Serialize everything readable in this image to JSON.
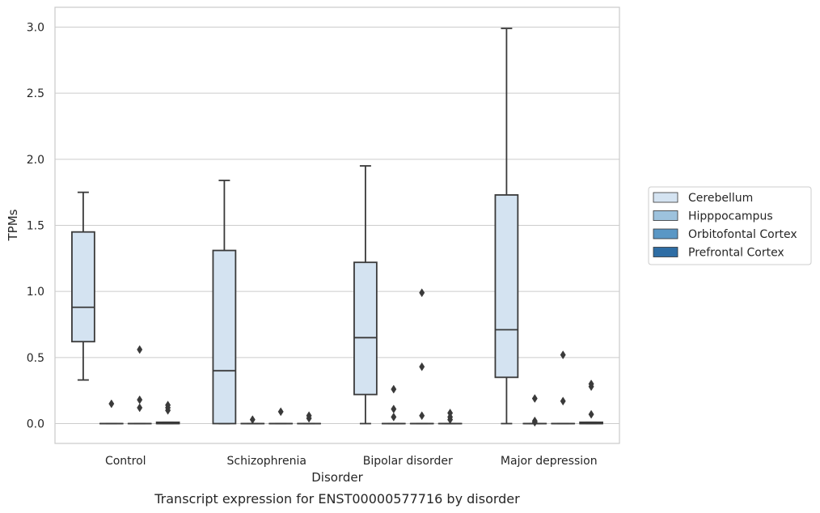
{
  "caption": "Transcript expression for ENST00000577716 by disorder",
  "chart_data": {
    "type": "box",
    "xlabel": "Disorder",
    "ylabel": "TPMs",
    "ylim": [
      -0.15,
      3.15
    ],
    "yticks": [
      0.0,
      0.5,
      1.0,
      1.5,
      2.0,
      2.5,
      3.0
    ],
    "ytick_labels": [
      "0.0",
      "0.5",
      "1.0",
      "1.5",
      "2.0",
      "2.5",
      "3.0"
    ],
    "grid": "horizontal",
    "legend_position": "right",
    "categories": [
      "Control",
      "Schizophrenia",
      "Bipolar disorder",
      "Major depression"
    ],
    "series": [
      {
        "name": "Cerebellum",
        "color": "#d4e3f1",
        "boxes": [
          {
            "whislo": 0.33,
            "q1": 0.62,
            "med": 0.88,
            "q3": 1.45,
            "whishi": 1.75,
            "fliers": []
          },
          {
            "whislo": 0.0,
            "q1": 0.0,
            "med": 0.4,
            "q3": 1.31,
            "whishi": 1.84,
            "fliers": []
          },
          {
            "whislo": 0.0,
            "q1": 0.22,
            "med": 0.65,
            "q3": 1.22,
            "whishi": 1.95,
            "fliers": []
          },
          {
            "whislo": 0.0,
            "q1": 0.35,
            "med": 0.71,
            "q3": 1.73,
            "whishi": 2.99,
            "fliers": []
          }
        ]
      },
      {
        "name": "Hipppocampus",
        "color": "#9dc2dd",
        "boxes": [
          {
            "whislo": 0.0,
            "q1": 0.0,
            "med": 0.0,
            "q3": 0.0,
            "whishi": 0.0,
            "fliers": [
              0.15
            ]
          },
          {
            "whislo": 0.0,
            "q1": 0.0,
            "med": 0.0,
            "q3": 0.0,
            "whishi": 0.0,
            "fliers": [
              0.03
            ]
          },
          {
            "whislo": 0.0,
            "q1": 0.0,
            "med": 0.0,
            "q3": 0.0,
            "whishi": 0.0,
            "fliers": [
              0.26,
              0.11,
              0.05
            ]
          },
          {
            "whislo": 0.0,
            "q1": 0.0,
            "med": 0.0,
            "q3": 0.0,
            "whishi": 0.0,
            "fliers": [
              0.19,
              0.02,
              0.01
            ]
          }
        ]
      },
      {
        "name": "Orbitofontal Cortex",
        "color": "#5a97c5",
        "boxes": [
          {
            "whislo": 0.0,
            "q1": 0.0,
            "med": 0.0,
            "q3": 0.0,
            "whishi": 0.0,
            "fliers": [
              0.56,
              0.18,
              0.12
            ]
          },
          {
            "whislo": 0.0,
            "q1": 0.0,
            "med": 0.0,
            "q3": 0.0,
            "whishi": 0.0,
            "fliers": [
              0.09
            ]
          },
          {
            "whislo": 0.0,
            "q1": 0.0,
            "med": 0.0,
            "q3": 0.0,
            "whishi": 0.0,
            "fliers": [
              0.99,
              0.43,
              0.06
            ]
          },
          {
            "whislo": 0.0,
            "q1": 0.0,
            "med": 0.0,
            "q3": 0.0,
            "whishi": 0.0,
            "fliers": [
              0.52,
              0.17
            ]
          }
        ]
      },
      {
        "name": "Prefrontal Cortex",
        "color": "#2e6da4",
        "boxes": [
          {
            "whislo": 0.0,
            "q1": 0.0,
            "med": 0.0,
            "q3": 0.01,
            "whishi": 0.01,
            "fliers": [
              0.14,
              0.12,
              0.1
            ]
          },
          {
            "whislo": 0.0,
            "q1": 0.0,
            "med": 0.0,
            "q3": 0.0,
            "whishi": 0.0,
            "fliers": [
              0.06,
              0.04
            ]
          },
          {
            "whislo": 0.0,
            "q1": 0.0,
            "med": 0.0,
            "q3": 0.0,
            "whishi": 0.0,
            "fliers": [
              0.08,
              0.05,
              0.03
            ]
          },
          {
            "whislo": 0.0,
            "q1": 0.0,
            "med": 0.0,
            "q3": 0.01,
            "whishi": 0.01,
            "fliers": [
              0.3,
              0.28,
              0.07
            ]
          }
        ]
      }
    ]
  }
}
